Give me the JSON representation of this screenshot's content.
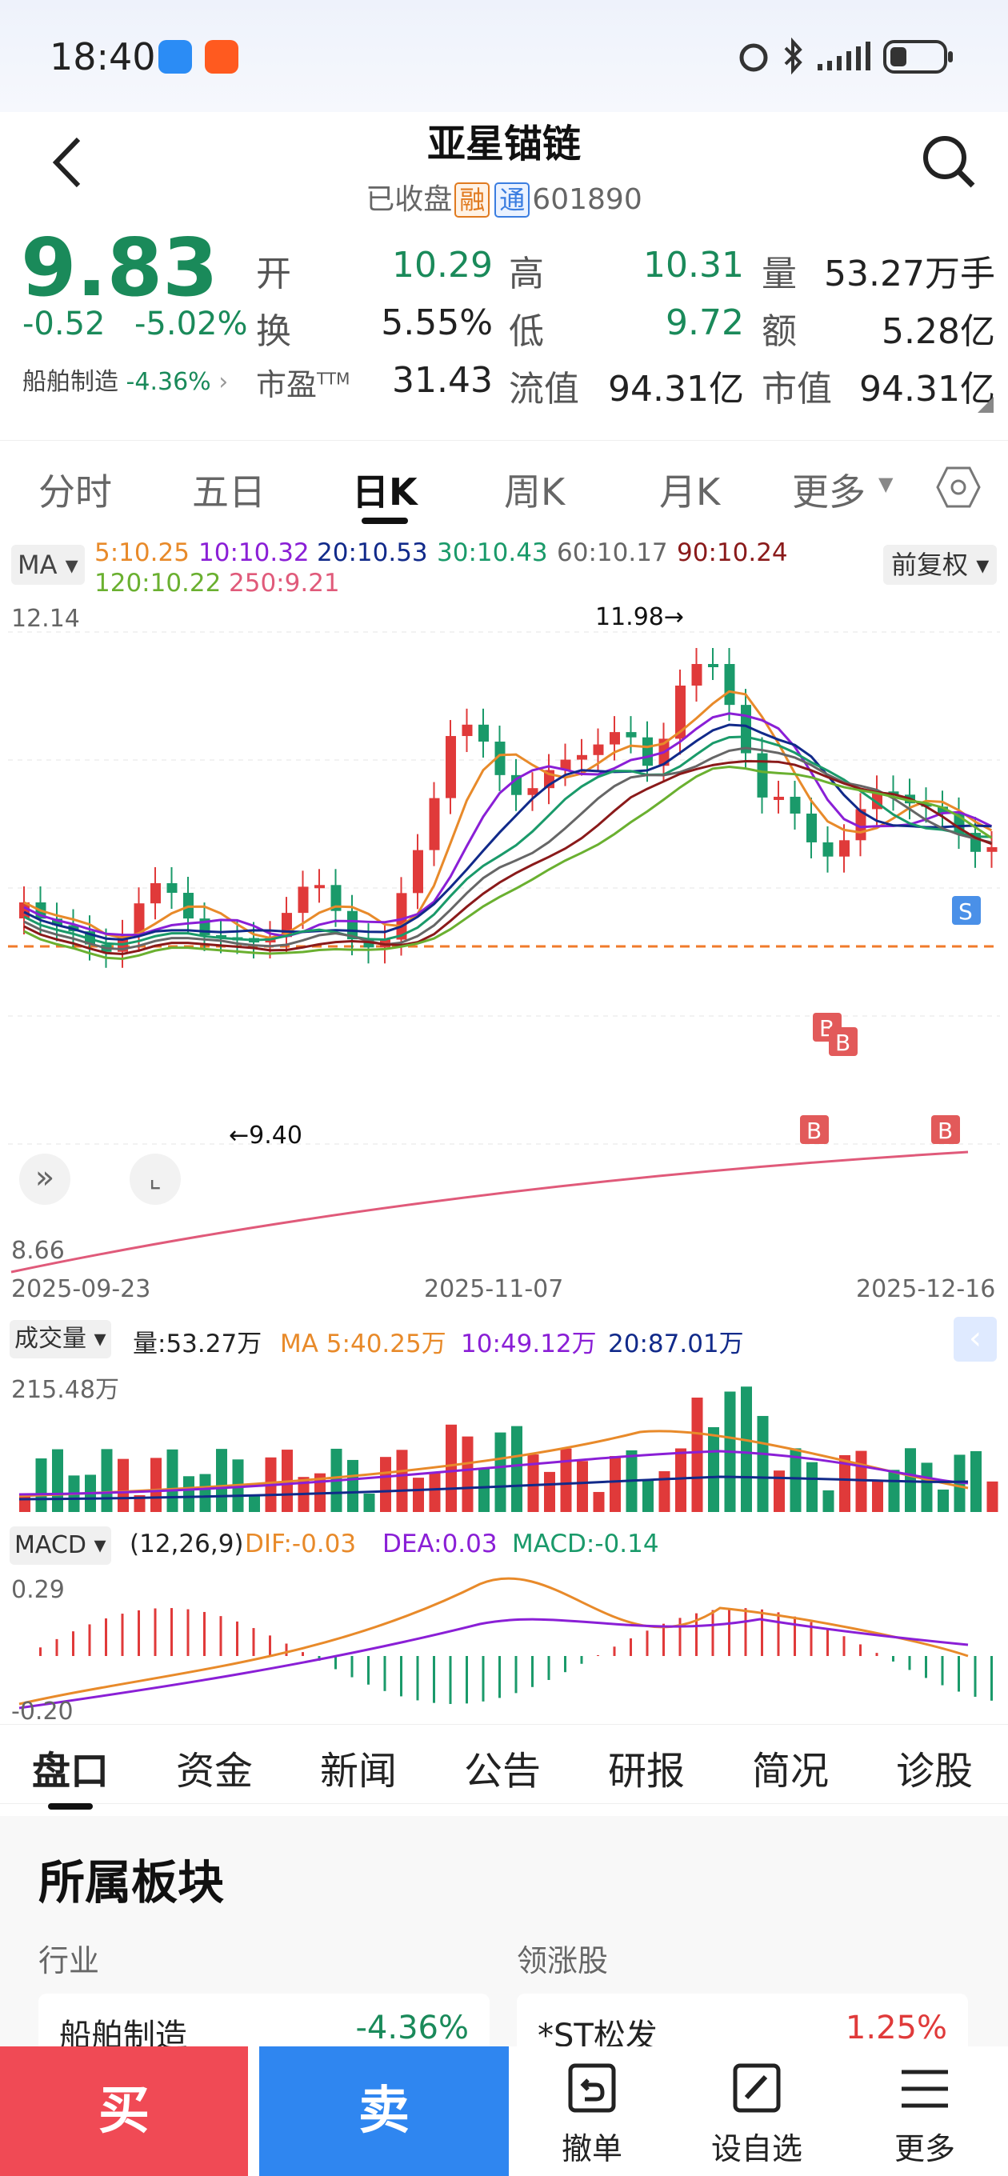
{
  "status": {
    "time": "18:40"
  },
  "header": {
    "title": "亚星锚链",
    "status": "已收盘",
    "tag_margin": "融",
    "tag_connect": "通",
    "code": "601890"
  },
  "quote": {
    "price": "9.83",
    "change": "-0.52",
    "change_pct": "-5.02%",
    "sector": "船舶制造",
    "sector_pct": "-4.36%",
    "open_label": "开",
    "open": "10.29",
    "high_label": "高",
    "high": "10.31",
    "vol_label": "量",
    "vol": "53.27万手",
    "turn_label": "换",
    "turn": "5.55%",
    "low_label": "低",
    "low": "9.72",
    "amt_label": "额",
    "amt": "5.28亿",
    "pe_label": "市盈",
    "pe_sup": "TTM",
    "pe": "31.43",
    "float_label": "流值",
    "float": "94.31亿",
    "mcap_label": "市值",
    "mcap": "94.31亿"
  },
  "tabs": [
    "分时",
    "五日",
    "日K",
    "周K",
    "月K",
    "更多"
  ],
  "ma": {
    "label": "MA",
    "ma5": "5:10.25",
    "ma10": "10:10.32",
    "ma20": "20:10.53",
    "ma30": "30:10.43",
    "ma60": "60:10.17",
    "ma90": "90:10.24",
    "ma120": "120:10.22",
    "ma250": "250:9.21",
    "adjust": "前复权"
  },
  "chart_data": {
    "type": "candlestick",
    "ymax": "12.14",
    "ymin": "8.66",
    "high_mark": "11.98→",
    "low_mark": "←9.40",
    "dates": [
      "2025-09-23",
      "2025-11-07",
      "2025-12-16"
    ]
  },
  "volume": {
    "label": "成交量",
    "vol": "量:53.27万",
    "ma5": "MA 5:40.25万",
    "ma10": "10:49.12万",
    "ma20": "20:87.01万",
    "max": "215.48万"
  },
  "macd": {
    "label": "MACD",
    "params": "(12,26,9)",
    "dif": "DIF:-0.03",
    "dea": "DEA:0.03",
    "macd": "MACD:-0.14",
    "top": "0.29",
    "bottom": "-0.20"
  },
  "bottom_tabs": [
    "盘口",
    "资金",
    "新闻",
    "公告",
    "研报",
    "简况",
    "诊股"
  ],
  "sector": {
    "title": "所属板块",
    "industry_label": "行业",
    "leader_label": "领涨股",
    "industry": "船舶制造",
    "industry_pct": "-4.36%",
    "leader": "*ST松发",
    "leader_pct": "1.25%"
  },
  "actions": {
    "buy": "买",
    "sell": "卖",
    "cancel": "撤单",
    "watch": "设自选",
    "more": "更多"
  }
}
